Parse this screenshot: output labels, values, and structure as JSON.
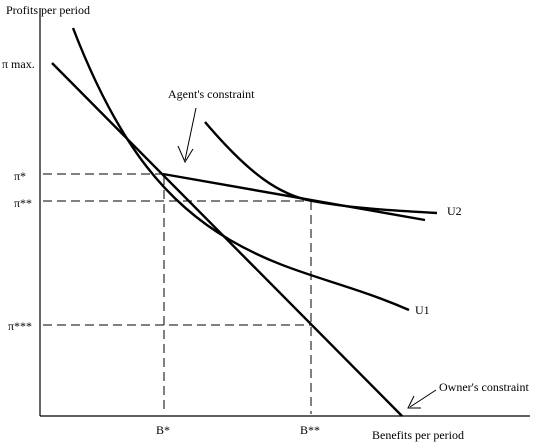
{
  "diagram": {
    "y_axis_title": "Profits per period",
    "x_axis_title": "Benefits per period",
    "y_labels": {
      "pi_max": "π max.",
      "pi_star": "π*",
      "pi_star2": "π**",
      "pi_star3": "π***"
    },
    "x_labels": {
      "b_star": "B*",
      "b_star2": "B**"
    },
    "curve_labels": {
      "u1": "U1",
      "u2": "U2"
    },
    "annotations": {
      "agents_constraint": "Agent's constraint",
      "owners_constraint": "Owner's constraint"
    }
  }
}
